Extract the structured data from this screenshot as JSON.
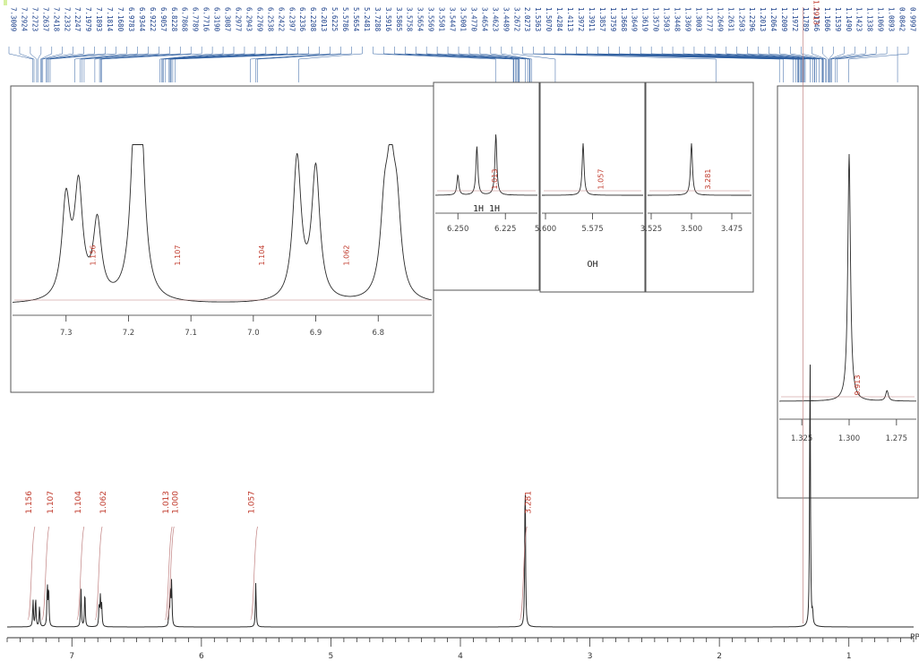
{
  "header": {
    "left_text": "",
    "highlight_text": ""
  },
  "colors": {
    "trace": "#2a2a2a",
    "integral": "#c08080",
    "labels": "#1a3f8a",
    "integral_text": "#c0392b",
    "frame": "#555555"
  },
  "chart_data": {
    "type": "line",
    "title": "",
    "xlabel": "",
    "ylabel": "",
    "axis_unit_label": "PP",
    "x_reversed": true,
    "xlim": [
      7.5,
      0.5
    ],
    "x_ticks": [
      7,
      6,
      5,
      4,
      3,
      2,
      1
    ],
    "peak_labels": [
      "7.3009",
      "7.2924",
      "7.2723",
      "7.2637",
      "7.2418",
      "7.2332",
      "7.2247",
      "7.1979",
      "7.1893",
      "7.1814",
      "7.1680",
      "6.9783",
      "6.9344",
      "6.9222",
      "6.9057",
      "6.8228",
      "6.7868",
      "6.7789",
      "6.7716",
      "6.3190",
      "6.3087",
      "6.2977",
      "6.2943",
      "6.2769",
      "6.2538",
      "6.2422",
      "6.2397",
      "6.2336",
      "6.2208",
      "6.2013",
      "5.6225",
      "5.5786",
      "5.5654",
      "5.2481",
      "3.7288",
      "3.5916",
      "3.5865",
      "3.5758",
      "3.5654",
      "3.5569",
      "3.5501",
      "3.5447",
      "3.5001",
      "3.4770",
      "3.4654",
      "3.4623",
      "3.4489",
      "3.2672",
      "2.0273",
      "1.5363",
      "1.5070",
      "1.4284",
      "1.4113",
      "1.3972",
      "1.3911",
      "1.3857",
      "1.3759",
      "1.3668",
      "1.3649",
      "1.3619",
      "1.3570",
      "1.3503",
      "1.3448",
      "1.3369",
      "1.3003",
      "1.2777",
      "1.2649",
      "1.2631",
      "1.2503",
      "1.2296",
      "1.2013",
      "1.2064",
      "1.2009",
      "1.1972",
      "1.1789",
      "1.1746",
      "1.1606",
      "1.1539",
      "1.1490",
      "1.1423",
      "1.1338",
      "1.1069",
      "1.0893",
      "0.0842",
      "0.9997"
    ],
    "overflow_peak_label": "1.2913",
    "series": [
      {
        "peaks": [
          {
            "x": 7.3,
            "h": 0.09
          },
          {
            "x": 7.28,
            "h": 0.1
          },
          {
            "x": 7.25,
            "h": 0.07
          },
          {
            "x": 7.19,
            "h": 0.14
          },
          {
            "x": 7.18,
            "h": 0.13
          },
          {
            "x": 6.93,
            "h": 0.13
          },
          {
            "x": 6.9,
            "h": 0.12
          },
          {
            "x": 6.79,
            "h": 0.07
          },
          {
            "x": 6.78,
            "h": 0.1
          },
          {
            "x": 6.77,
            "h": 0.07
          },
          {
            "x": 6.25,
            "h": 0.05
          },
          {
            "x": 6.24,
            "h": 0.12
          },
          {
            "x": 6.23,
            "h": 0.15
          },
          {
            "x": 5.58,
            "h": 0.15
          },
          {
            "x": 3.5,
            "h": 0.52
          },
          {
            "x": 1.3,
            "h": 0.96
          },
          {
            "x": 1.28,
            "h": 0.04
          }
        ]
      }
    ],
    "integrals": [
      {
        "x": 7.3,
        "label": "1.156"
      },
      {
        "x": 7.19,
        "label": "1.107"
      },
      {
        "x": 6.92,
        "label": "1.104"
      },
      {
        "x": 6.78,
        "label": "1.062"
      },
      {
        "x": 6.24,
        "label": "1.013"
      },
      {
        "x": 6.225,
        "label": "1.000"
      },
      {
        "x": 5.58,
        "label": "1.057"
      },
      {
        "x": 3.5,
        "label": "3.281"
      },
      {
        "x": 1.3,
        "label": "9.913"
      }
    ],
    "insets": [
      {
        "name": "aromatic",
        "xlim": [
          7.38,
          6.72
        ],
        "ticks": [
          7.3,
          7.2,
          7.1,
          7.0,
          6.9,
          6.8
        ],
        "tick_labels": [
          "7.3",
          "7.2",
          "7.1",
          "7.0",
          "6.9",
          "6.8"
        ],
        "integral_labels": [
          "1.156",
          "1.107",
          "1.104",
          "1.062"
        ],
        "annotation": ""
      },
      {
        "name": "olefinic",
        "xlim": [
          6.26,
          6.21
        ],
        "ticks": [
          6.25,
          6.225
        ],
        "tick_labels": [
          "6.250",
          "6.225"
        ],
        "integral_labels": [
          "1.013"
        ],
        "annotation": "1H  1H"
      },
      {
        "name": "hydroxyl",
        "xlim": [
          5.6,
          5.55
        ],
        "ticks": [
          5.6,
          5.575
        ],
        "tick_labels": [
          "5.600",
          "5.575"
        ],
        "integral_labels": [
          "1.057"
        ],
        "annotation": "OH"
      },
      {
        "name": "methoxy",
        "xlim": [
          3.525,
          3.465
        ],
        "ticks": [
          3.525,
          3.5,
          3.475
        ],
        "tick_labels": [
          "3.525",
          "3.500",
          "3.475"
        ],
        "integral_labels": [
          "3.281"
        ],
        "annotation": ""
      },
      {
        "name": "alkyl",
        "xlim": [
          1.335,
          1.265
        ],
        "ticks": [
          1.325,
          1.3,
          1.275
        ],
        "tick_labels": [
          "1.325",
          "1.300",
          "1.275"
        ],
        "integral_labels": [
          "9.913"
        ],
        "annotation": ""
      }
    ]
  }
}
